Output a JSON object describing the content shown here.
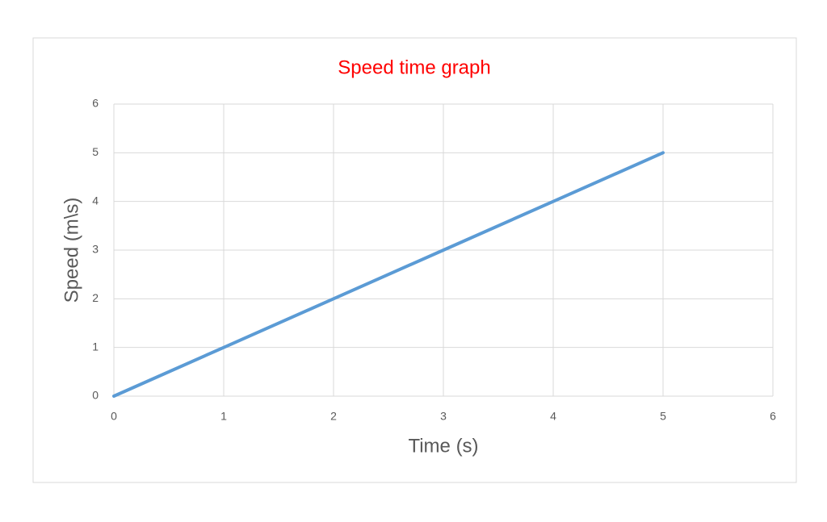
{
  "chart_data": {
    "type": "line",
    "title": "Speed time graph",
    "x_label": "Time (s)",
    "y_label": "Speed (m\\s)",
    "x": [
      0,
      1,
      2,
      3,
      4,
      5
    ],
    "values": [
      0,
      1,
      2,
      3,
      4,
      5
    ],
    "color": "#5b9bd5",
    "title_color": "#ff0000",
    "xlim": [
      0,
      6
    ],
    "xticks": [
      0,
      1,
      2,
      3,
      4,
      5,
      6
    ],
    "ylim": [
      0,
      6
    ],
    "yticks": [
      0,
      1,
      2,
      3,
      4,
      5,
      6
    ],
    "grid": true
  }
}
